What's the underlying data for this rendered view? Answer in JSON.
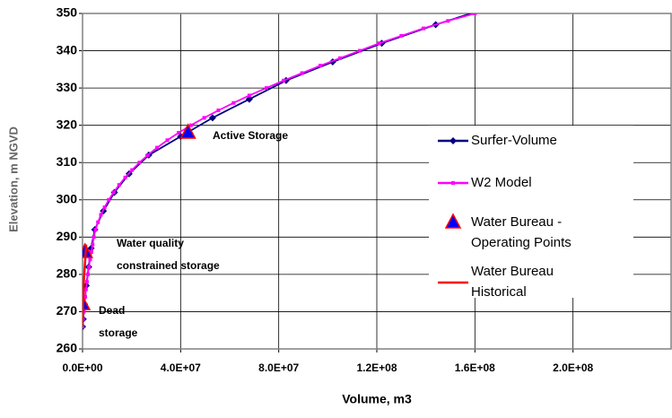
{
  "chart_data": {
    "type": "line",
    "ylabel": "Elevation, m NGVD",
    "xlabel": "Volume, m3",
    "xlim": [
      0,
      240000000
    ],
    "ylim": [
      260,
      350
    ],
    "xticks": [
      {
        "value": 0,
        "label": "0.0E+00"
      },
      {
        "value": 40000000,
        "label": "4.0E+07"
      },
      {
        "value": 80000000,
        "label": "8.0E+07"
      },
      {
        "value": 120000000,
        "label": "1.2E+08"
      },
      {
        "value": 160000000,
        "label": "1.6E+08"
      },
      {
        "value": 200000000,
        "label": "2.0E+08"
      }
    ],
    "yticks": [
      260,
      270,
      280,
      290,
      300,
      310,
      320,
      330,
      340,
      350
    ],
    "grid": true,
    "series": [
      {
        "name": "Surfer-Volume",
        "color": "#000080",
        "marker": "diamond",
        "line": true,
        "x": [
          0,
          300000,
          800000,
          1500000,
          2500000,
          3500000,
          5000000,
          8500000,
          13000000,
          19000000,
          27000000,
          40000000,
          53000000,
          68000000,
          83000000,
          102000000,
          122000000,
          144000000,
          168000000
        ],
        "values": [
          266,
          268,
          272,
          277,
          282,
          287,
          292,
          297,
          302,
          307,
          312,
          317,
          322,
          327,
          332,
          337,
          342,
          347,
          352
        ]
      },
      {
        "name": "W2 Model",
        "color": "#ff00ff",
        "marker": "square",
        "line": true,
        "x": [
          0,
          200000,
          500000,
          800000,
          1100000,
          1400000,
          1800000,
          2200000,
          2600000,
          3100000,
          3600000,
          4100000,
          4600000,
          5300000,
          6300000,
          7500000,
          9000000,
          10700000,
          12700000,
          14900000,
          17400000,
          20200000,
          23200000,
          26600000,
          30400000,
          34600000,
          39200000,
          44200000,
          49600000,
          55400000,
          61600000,
          68000000,
          75000000,
          82000000,
          89500000,
          97000000,
          105000000,
          113000000,
          121000000,
          130000000,
          139000000,
          149000000,
          160000000
        ],
        "values": [
          266,
          268,
          270,
          272,
          274,
          276,
          278,
          280,
          282,
          284,
          286,
          288,
          290,
          292,
          294,
          296,
          298,
          300,
          302,
          304,
          306,
          308,
          310,
          312,
          314,
          316,
          318,
          320,
          322,
          324,
          326,
          328,
          330,
          332,
          334,
          336,
          338,
          340,
          342,
          344,
          346,
          348,
          350
        ]
      },
      {
        "name": "Water Bureau - Operating Points",
        "color": "#0000ff",
        "marker": "triangle",
        "line": false,
        "x": [
          0,
          1000000,
          43000000
        ],
        "values": [
          272,
          286,
          318
        ]
      },
      {
        "name": "Water Bureau Historical",
        "color": "#ff0000",
        "marker": "none",
        "line": true,
        "x": [
          0,
          500000,
          1500000
        ],
        "values": [
          266,
          278,
          288
        ]
      }
    ],
    "annotations": [
      {
        "text": [
          "Active Storage"
        ]
      },
      {
        "text": [
          "Water quality",
          "constrained storage"
        ]
      },
      {
        "text": [
          "Dead",
          "storage"
        ]
      }
    ]
  }
}
